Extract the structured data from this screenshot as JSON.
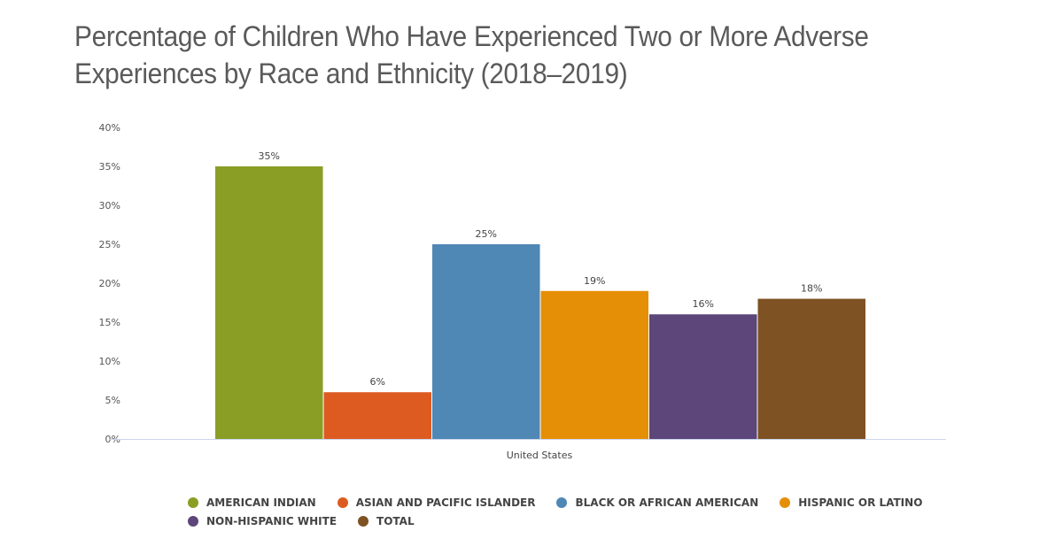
{
  "chart_data": {
    "type": "bar",
    "title": "Percentage of Children Who Have Experienced Two or More Adverse Experiences by Race and Ethnicity (2018–2019)",
    "categories": [
      "United States"
    ],
    "series": [
      {
        "name": "AMERICAN INDIAN",
        "values": [
          35
        ],
        "label": "35%",
        "color": "#8a9e25"
      },
      {
        "name": "ASIAN AND PACIFIC ISLANDER",
        "values": [
          6
        ],
        "label": "6%",
        "color": "#dd5b21"
      },
      {
        "name": "BLACK OR AFRICAN AMERICAN",
        "values": [
          25
        ],
        "label": "25%",
        "color": "#4f87b5"
      },
      {
        "name": "HISPANIC OR LATINO",
        "values": [
          19
        ],
        "label": "19%",
        "color": "#e58f06"
      },
      {
        "name": "NON-HISPANIC WHITE",
        "values": [
          16
        ],
        "label": "16%",
        "color": "#5c467a"
      },
      {
        "name": "TOTAL",
        "values": [
          18
        ],
        "label": "18%",
        "color": "#7e5223"
      }
    ],
    "ylim": [
      0,
      40
    ],
    "yticks": [
      "0%",
      "5%",
      "10%",
      "15%",
      "20%",
      "25%",
      "30%",
      "35%",
      "40%"
    ],
    "ytick_values": [
      0,
      5,
      10,
      15,
      20,
      25,
      30,
      35,
      40
    ],
    "xlabel": "",
    "ylabel": "",
    "grid": false,
    "legend_position": "bottom"
  }
}
